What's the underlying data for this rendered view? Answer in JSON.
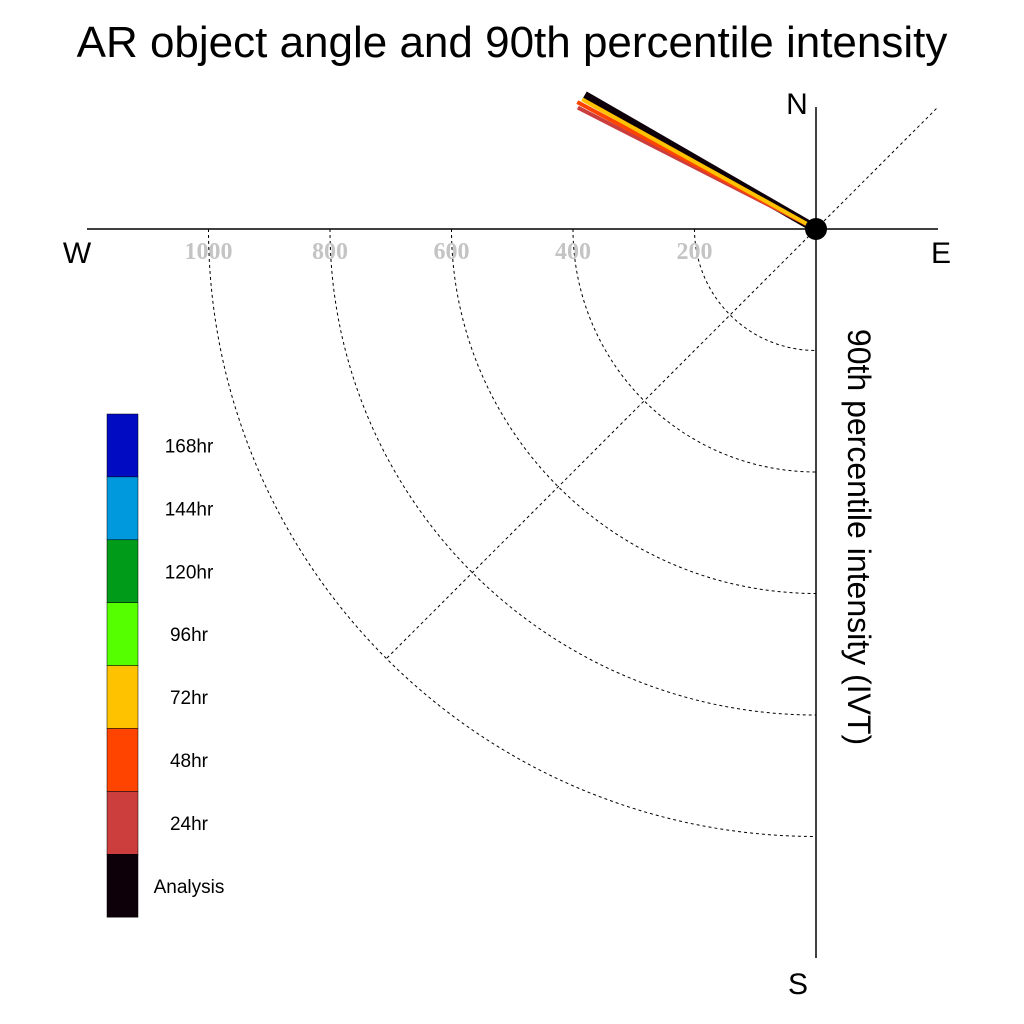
{
  "chart_data": {
    "type": "polar-vector",
    "title": "AR object angle and 90th percentile intensity",
    "ylabel": "90th percentile intensity (IVT)",
    "compass": {
      "north": "N",
      "south": "S",
      "east": "E",
      "west": "W"
    },
    "radial_ticks": [
      "200",
      "400",
      "600",
      "800",
      "1000"
    ],
    "radial_tick_values": [
      200,
      400,
      600,
      800,
      1000
    ],
    "rmax": 1200,
    "series": [
      {
        "name": "Analysis",
        "color": "#0d0008",
        "angle_deg": 300,
        "intensity": 440
      },
      {
        "name": "24hr",
        "color": "#cc3d3d",
        "angle_deg": 297,
        "intensity": 440
      },
      {
        "name": "48hr",
        "color": "#ff4400",
        "angle_deg": 298,
        "intensity": 445
      },
      {
        "name": "72hr",
        "color": "#ffc200",
        "angle_deg": 299,
        "intensity": 440
      }
    ],
    "legend": [
      {
        "label": "168hr",
        "color": "#000bc2"
      },
      {
        "label": "144hr",
        "color": "#0099dd"
      },
      {
        "label": "120hr",
        "color": "#009b19"
      },
      {
        "label": "96hr",
        "color": "#55ff00"
      },
      {
        "label": "72hr",
        "color": "#ffc200"
      },
      {
        "label": "48hr",
        "color": "#ff4400"
      },
      {
        "label": "24hr",
        "color": "#cc3d3d"
      },
      {
        "label": "Analysis",
        "color": "#0d0008"
      }
    ]
  }
}
